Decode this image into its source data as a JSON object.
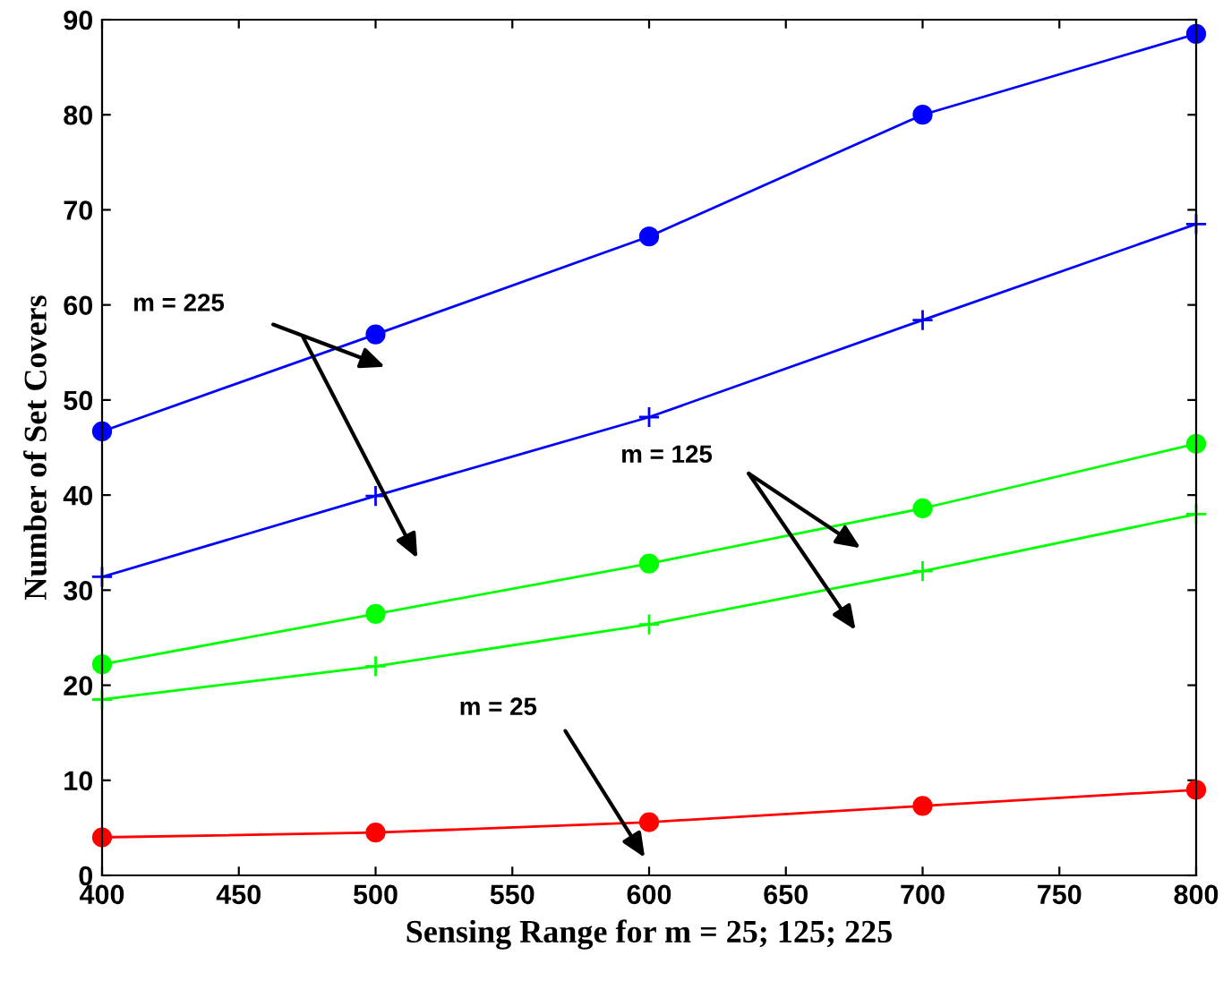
{
  "chart_data": {
    "type": "line",
    "xlabel": "Sensing Range for m = 25; 125; 225",
    "ylabel": "Number of Set Covers",
    "x": [
      400,
      500,
      600,
      700,
      800
    ],
    "series": [
      {
        "color": "#0000ff",
        "marker": "circle",
        "values": [
          46.7,
          56.9,
          67.2,
          80.0,
          88.5
        ]
      },
      {
        "color": "#0000ff",
        "marker": "cross",
        "values": [
          31.4,
          39.9,
          48.2,
          58.4,
          68.5
        ]
      },
      {
        "color": "#00ff00",
        "marker": "circle",
        "values": [
          22.2,
          27.5,
          32.8,
          38.6,
          45.4
        ]
      },
      {
        "color": "#00ff00",
        "marker": "cross",
        "values": [
          18.5,
          22.0,
          26.4,
          32.0,
          38.0
        ]
      },
      {
        "color": "#ff0000",
        "marker": "circle",
        "values": [
          4.0,
          4.5,
          5.6,
          7.3,
          9.0
        ]
      }
    ],
    "annotations": [
      "m = 225",
      "m = 125",
      "m = 25"
    ],
    "xlim": [
      400,
      800
    ],
    "ylim": [
      0,
      90
    ],
    "xticks": [
      400,
      450,
      500,
      550,
      600,
      650,
      700,
      750,
      800
    ],
    "yticks": [
      0,
      10,
      20,
      30,
      40,
      50,
      60,
      70,
      80,
      90
    ],
    "grid": false,
    "legend": false
  }
}
